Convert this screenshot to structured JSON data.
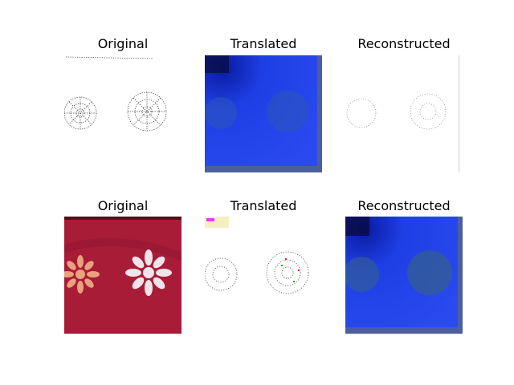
{
  "figure": {
    "background": "#ffffff",
    "titles": {
      "row1_original": "Original",
      "row1_translated": "Translated",
      "row1_reconstructed": "Reconstructed",
      "row2_original": "Original",
      "row2_translated": "Translated",
      "row2_reconstructed": "Reconstructed"
    },
    "colors": {
      "fabric_red": "#a81c38",
      "fabric_dark_band": "#4a1418",
      "flower_peach": "#e8a27e",
      "flower_white": "#f0e4ea",
      "blue_fill": "#1f3fe6",
      "blue_dark": "#081a9e",
      "blue_border": "#4b5fa0"
    }
  }
}
